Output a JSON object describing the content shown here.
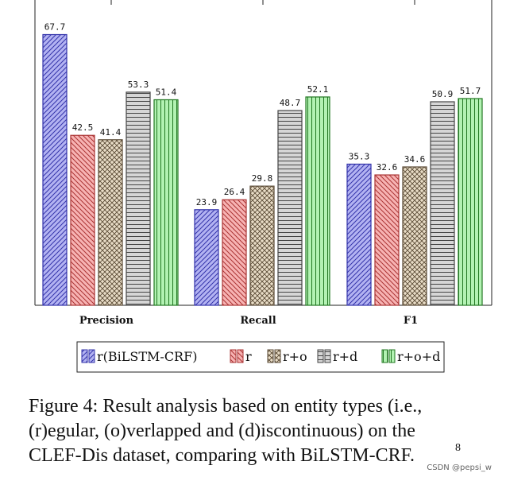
{
  "chart_data": {
    "type": "bar",
    "categories": [
      "Precision",
      "Recall",
      "F1"
    ],
    "series": [
      {
        "name": "r(BiLSTM-CRF)",
        "values": [
          67.7,
          23.9,
          35.3
        ],
        "fill": "#b3b3f2",
        "stroke": "#3333aa",
        "pattern": "diag-lr"
      },
      {
        "name": "r",
        "values": [
          42.5,
          26.4,
          32.6
        ],
        "fill": "#f7b3b3",
        "stroke": "#aa3333",
        "pattern": "diag-rl"
      },
      {
        "name": "r+o",
        "values": [
          41.4,
          29.8,
          34.6
        ],
        "fill": "#e8dcc6",
        "stroke": "#5a4a35",
        "pattern": "crosshatch"
      },
      {
        "name": "r+d",
        "values": [
          53.3,
          48.7,
          50.9
        ],
        "fill": "#d6d6d6",
        "stroke": "#444444",
        "pattern": "horizontal"
      },
      {
        "name": "r+o+d",
        "values": [
          51.4,
          52.1,
          51.7
        ],
        "fill": "#b3f2b3",
        "stroke": "#227722",
        "pattern": "vertical"
      }
    ],
    "ylim": [
      0,
      75
    ],
    "xlabel": "",
    "ylabel": "",
    "legend": "bottom-center"
  },
  "caption": {
    "line1": "Figure 4:   Result analysis based on entity types (i.e.,",
    "line2": "(r)egular,  (o)verlapped  and  (d)iscontinuous)  on  the",
    "line3": "CLEF-Dis dataset, comparing with BiLSTM-CRF."
  },
  "footnote": "8",
  "watermark": "CSDN @pepsi_w"
}
